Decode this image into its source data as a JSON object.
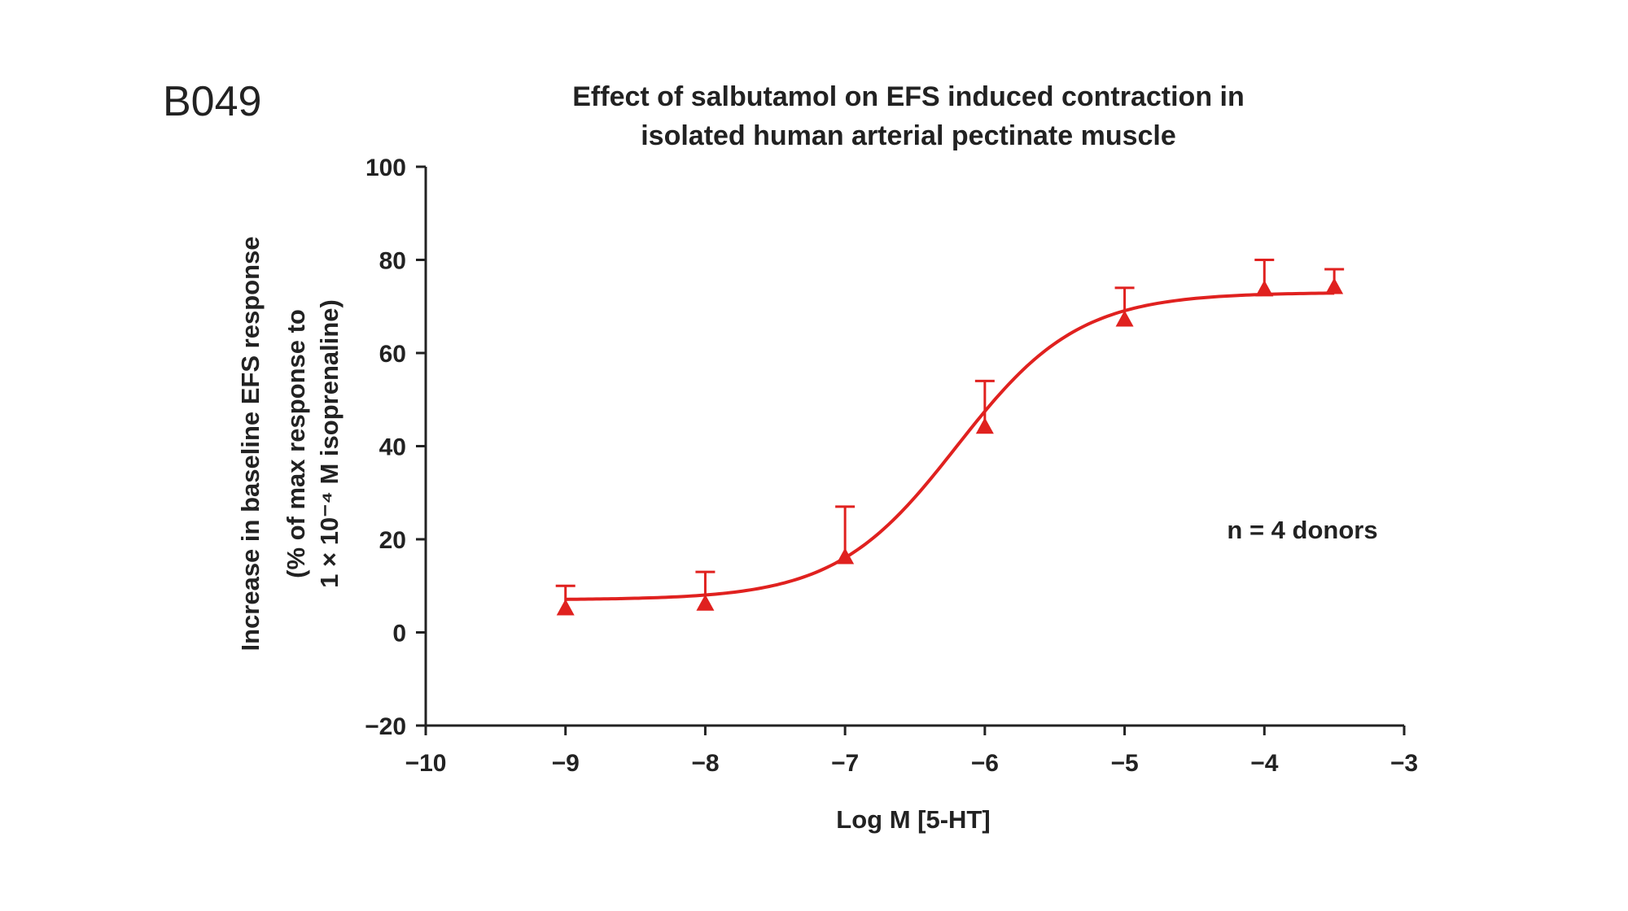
{
  "panel_label": "B049",
  "chart_data": {
    "type": "line",
    "title_lines": [
      "Effect of salbutamol on EFS induced contraction in",
      "isolated human arterial pectinate muscle"
    ],
    "xlabel": "Log M [5-HT]",
    "ylabel_lines": [
      "Increase in baseline EFS response",
      "(% of max response to",
      "1 × 10⁻⁴ M isoprenaline)"
    ],
    "xlim": [
      -10,
      -3
    ],
    "ylim": [
      -20,
      100
    ],
    "x_ticks": [
      -10,
      -9,
      -8,
      -7,
      -6,
      -5,
      -4,
      -3
    ],
    "x_tick_labels": [
      "−10",
      "−9",
      "−8",
      "−7",
      "−6",
      "−5",
      "−4",
      "−3"
    ],
    "y_ticks": [
      -20,
      0,
      20,
      40,
      60,
      80,
      100
    ],
    "y_tick_labels": [
      "−20",
      "0",
      "20",
      "40",
      "60",
      "80",
      "100"
    ],
    "annotation": "n = 4 donors",
    "series": [
      {
        "name": "salbutamol",
        "color": "#e0211f",
        "marker": "triangle-up",
        "x": [
          -9,
          -8,
          -7,
          -6,
          -5,
          -4,
          -3.5
        ],
        "y": [
          5,
          6,
          16,
          44,
          67,
          73.5,
          74
        ],
        "error_upper": [
          5,
          7,
          11,
          10,
          7,
          6.5,
          4
        ]
      }
    ],
    "fit": {
      "type": "sigmoid",
      "bottom": 7,
      "top": 73,
      "log_ec50": -6.2,
      "hill_slope": 1.0
    }
  }
}
